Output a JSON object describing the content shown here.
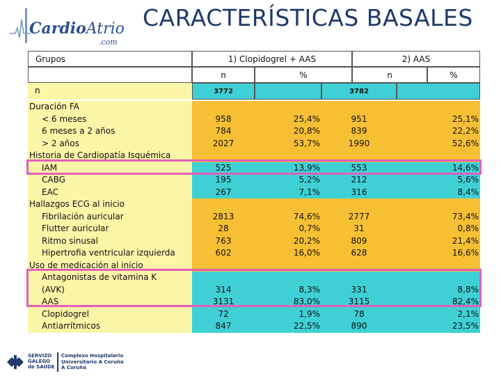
{
  "header": {
    "logo": {
      "part1": "Cardio",
      "part2": "Atrio",
      "sub": ".com"
    },
    "title": "CARACTERÍSTICAS BASALES"
  },
  "table": {
    "groups_label": "Grupos",
    "group1": "1) Clopidogrel + AAS",
    "group2": "2) AAS",
    "n_label": "n",
    "pct_label": "%",
    "n_row": {
      "label": "n",
      "n1": "3772",
      "n2": "3782"
    },
    "sections": [
      {
        "title": "Duración FA",
        "rows": [
          {
            "label": "< 6 meses",
            "n1": "958",
            "p1": "25,4%",
            "n2": "951",
            "p2": "25,1%"
          },
          {
            "label": "6 meses a 2 años",
            "n1": "784",
            "p1": "20,8%",
            "n2": "839",
            "p2": "22,2%"
          },
          {
            "label": "> 2 años",
            "n1": "2027",
            "p1": "53,7%",
            "n2": "1990",
            "p2": "52,6%"
          }
        ]
      },
      {
        "title": "Historia de Cardiopatía Isquémica",
        "rows": [
          {
            "label": "IAM",
            "n1": "525",
            "p1": "13,9%",
            "n2": "553",
            "p2": "14,6%"
          },
          {
            "label": "CABG",
            "n1": "195",
            "p1": "5,2%",
            "n2": "212",
            "p2": "5,6%"
          },
          {
            "label": "EAC",
            "n1": "267",
            "p1": "7,1%",
            "n2": "316",
            "p2": "8,4%"
          }
        ]
      },
      {
        "title": "Hallazgos ECG al inicio",
        "rows": [
          {
            "label": "Fibrilación auricular",
            "n1": "2813",
            "p1": "74,6%",
            "n2": "2777",
            "p2": "73,4%"
          },
          {
            "label": "Flutter auricular",
            "n1": "28",
            "p1": "0,7%",
            "n2": "31",
            "p2": "0,8%"
          },
          {
            "label": "Ritmo sinusal",
            "n1": "763",
            "p1": "20,2%",
            "n2": "809",
            "p2": "21,4%"
          },
          {
            "label": "Hipertrofia ventricular izquierda",
            "n1": "602",
            "p1": "16,0%",
            "n2": "628",
            "p2": "16,6%"
          }
        ]
      },
      {
        "title": "Uso de medicación al inicio",
        "rows": [
          {
            "label": "Antagonistas de vitamina K",
            "n1": "",
            "p1": "",
            "n2": "",
            "p2": ""
          },
          {
            "label": "(AVK)",
            "n1": "314",
            "p1": "8,3%",
            "n2": "331",
            "p2": "8,8%"
          },
          {
            "label": "AAS",
            "n1": "3131",
            "p1": "83,0%",
            "n2": "3115",
            "p2": "82,4%"
          },
          {
            "label": "Clopidogrel",
            "n1": "72",
            "p1": "1,9%",
            "n2": "78",
            "p2": "2,1%"
          },
          {
            "label": "Antiarrítmicos",
            "n1": "847",
            "p1": "22,5%",
            "n2": "890",
            "p2": "23,5%"
          }
        ]
      }
    ]
  },
  "footer": {
    "sergas": [
      "SERVIZO",
      "GALEGO",
      "de SAÚDE"
    ],
    "hospital": [
      "Complexo Hospitalario",
      "Universitario A Coruña",
      "A Coruña"
    ]
  },
  "colors": {
    "yellow": "#fbf5a8",
    "cyan": "#3fd0d6",
    "orange": "#f7bf33",
    "highlight": "#e060b8"
  }
}
